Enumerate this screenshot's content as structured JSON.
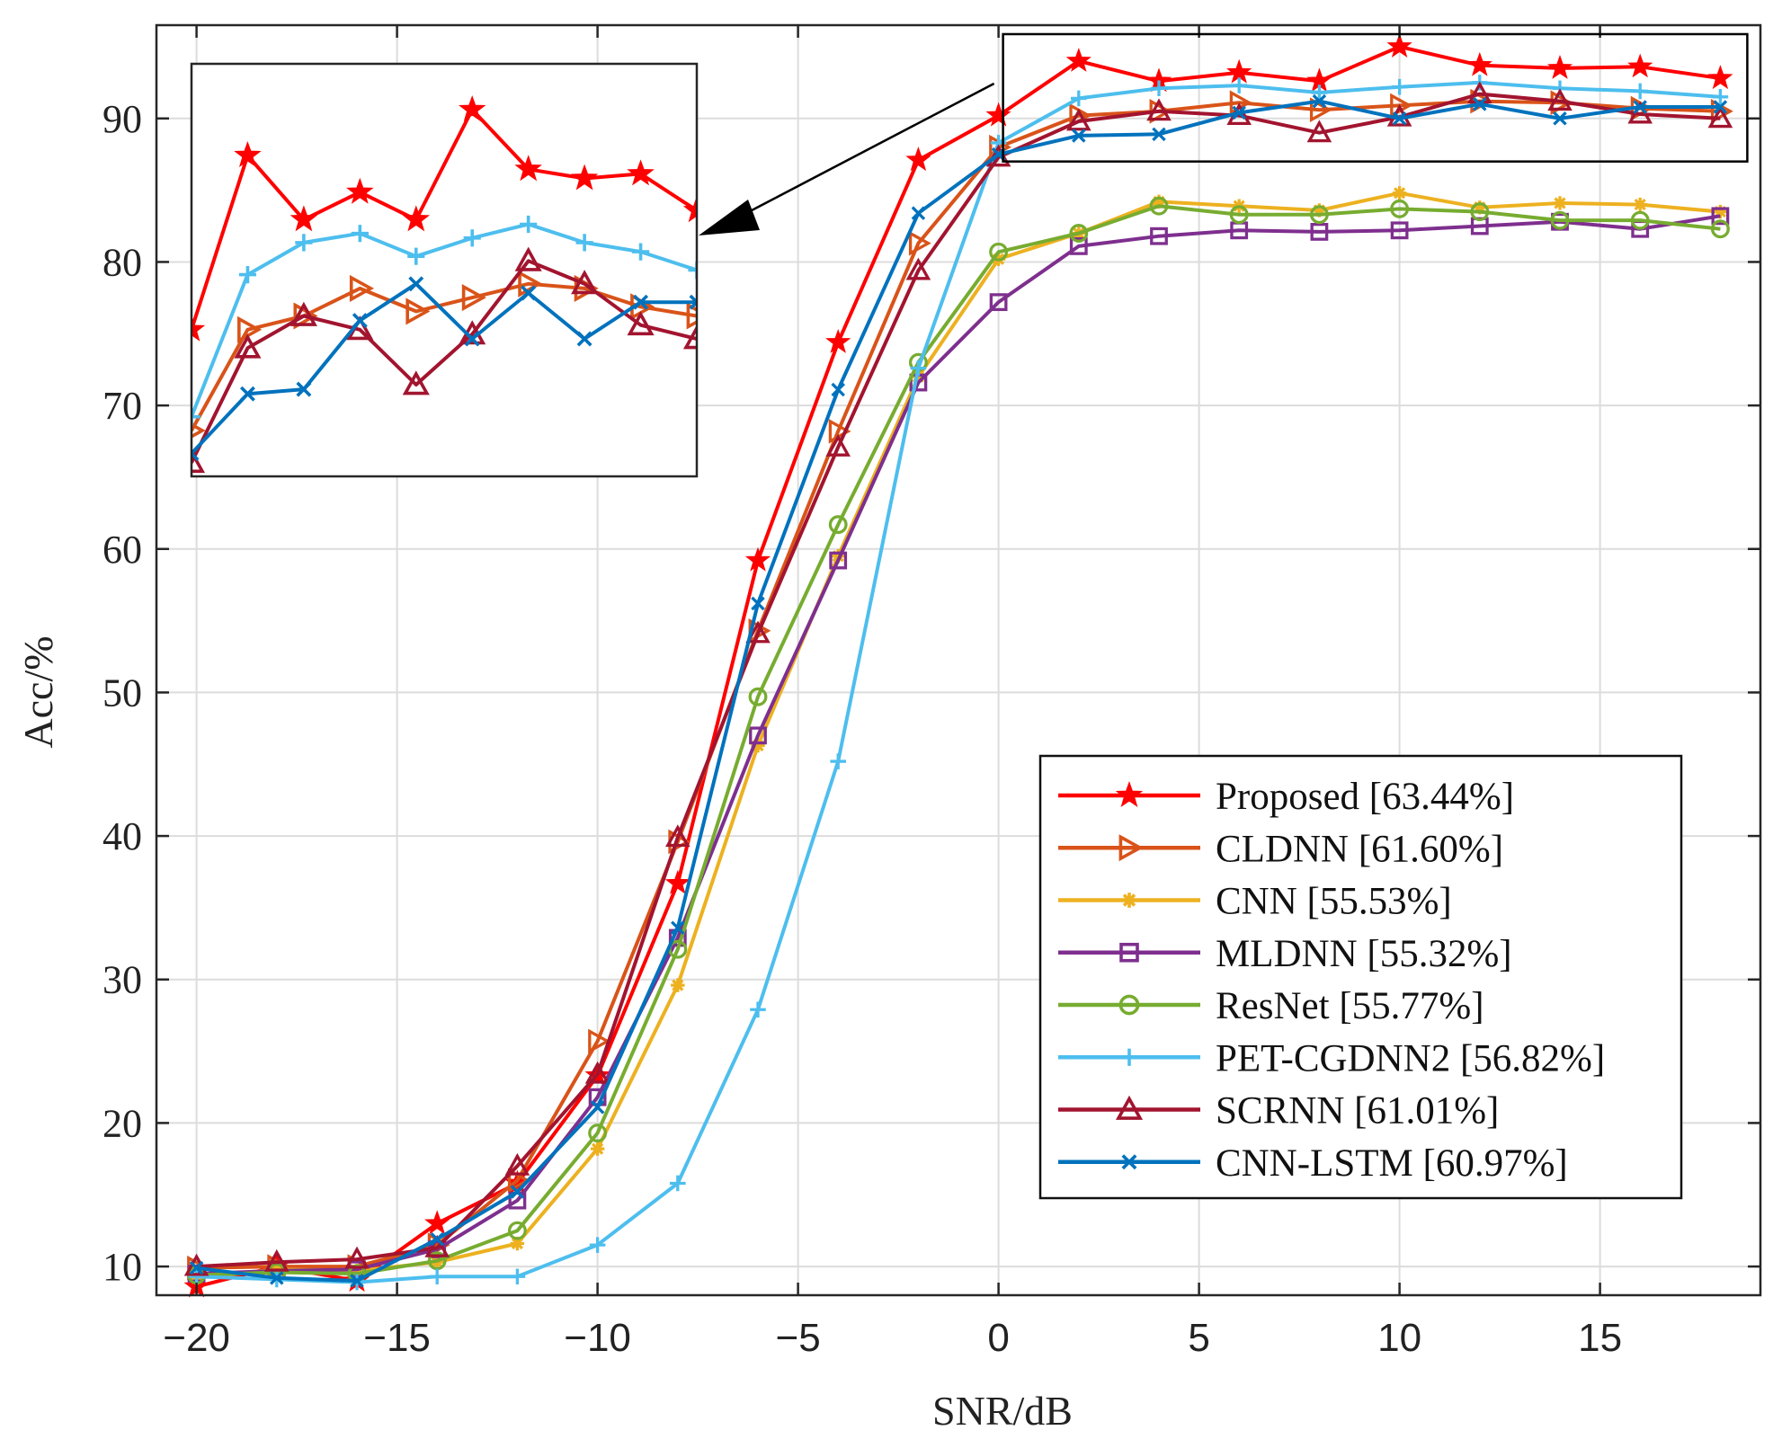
{
  "chart_data": {
    "type": "line",
    "xlabel": "SNR/dB",
    "ylabel": "Acc/%",
    "xlim": [
      -21,
      19
    ],
    "ylim": [
      8,
      96.5
    ],
    "x_ticks": [
      -20,
      -15,
      -10,
      -5,
      0,
      5,
      10,
      15
    ],
    "x_tick_labels": [
      "−20",
      "−15",
      "−10",
      "−5",
      "0",
      "5",
      "10",
      "15"
    ],
    "y_ticks": [
      10,
      20,
      30,
      40,
      50,
      60,
      70,
      80,
      90
    ],
    "y_tick_labels": [
      "10",
      "20",
      "30",
      "40",
      "50",
      "60",
      "70",
      "80",
      "90"
    ],
    "grid": true,
    "legend_position": "lower-right",
    "x": [
      -20,
      -18,
      -16,
      -14,
      -12,
      -10,
      -8,
      -6,
      -4,
      -2,
      0,
      2,
      4,
      6,
      8,
      10,
      12,
      14,
      16,
      18
    ],
    "series": [
      {
        "name": "Proposed [63.44%]",
        "color": "#ff0000",
        "marker": "star",
        "values": [
          8.6,
          10.0,
          9.0,
          13.0,
          15.8,
          23.3,
          36.7,
          59.2,
          74.4,
          87.1,
          90.2,
          94.0,
          92.6,
          93.2,
          92.6,
          95.0,
          93.7,
          93.5,
          93.6,
          92.8
        ]
      },
      {
        "name": "CLDNN [61.60%]",
        "color": "#d95319",
        "marker": "triangle-right",
        "values": [
          9.9,
          10.0,
          10.0,
          11.5,
          16.0,
          25.7,
          39.6,
          54.3,
          68.2,
          81.3,
          88.0,
          90.2,
          90.5,
          91.1,
          90.6,
          90.9,
          91.2,
          91.1,
          90.7,
          90.5
        ]
      },
      {
        "name": "CNN [55.53%]",
        "color": "#edb120",
        "marker": "asterisk",
        "values": [
          9.2,
          9.8,
          9.7,
          10.3,
          11.6,
          18.2,
          29.6,
          46.3,
          59.5,
          72.0,
          80.2,
          82.0,
          84.2,
          83.9,
          83.6,
          84.8,
          83.8,
          84.1,
          84.0,
          83.5
        ]
      },
      {
        "name": "MLDNN [55.32%]",
        "color": "#7e2f8e",
        "marker": "square",
        "values": [
          9.5,
          9.7,
          9.8,
          11.2,
          14.6,
          21.8,
          32.9,
          47.0,
          59.2,
          71.6,
          77.2,
          81.1,
          81.8,
          82.2,
          82.1,
          82.2,
          82.5,
          82.8,
          82.3,
          83.2
        ]
      },
      {
        "name": "ResNet [55.77%]",
        "color": "#77ac30",
        "marker": "circle",
        "values": [
          9.4,
          9.6,
          9.5,
          10.4,
          12.5,
          19.3,
          32.1,
          49.7,
          61.7,
          73.0,
          80.7,
          82.0,
          83.9,
          83.3,
          83.3,
          83.7,
          83.5,
          82.9,
          82.9,
          82.3
        ]
      },
      {
        "name": "PET-CGDNN2 [56.82%]",
        "color": "#4dbeee",
        "marker": "plus",
        "values": [
          9.3,
          9.1,
          8.9,
          9.3,
          9.3,
          11.5,
          15.8,
          27.9,
          45.2,
          72.6,
          88.3,
          91.4,
          92.1,
          92.3,
          91.8,
          92.2,
          92.5,
          92.1,
          91.9,
          91.5
        ]
      },
      {
        "name": "SCRNN [61.01%]",
        "color": "#a2142f",
        "marker": "triangle-up",
        "values": [
          10.0,
          10.3,
          10.5,
          11.3,
          17.0,
          23.4,
          39.9,
          54.1,
          67.1,
          79.4,
          87.3,
          89.8,
          90.5,
          90.2,
          89.0,
          90.1,
          91.7,
          91.2,
          90.3,
          90.0
        ]
      },
      {
        "name": "CNN-LSTM [60.97%]",
        "color": "#0072bd",
        "marker": "x",
        "values": [
          9.9,
          9.2,
          9.0,
          11.9,
          15.2,
          21.1,
          33.6,
          56.2,
          71.1,
          83.4,
          87.5,
          88.8,
          88.9,
          90.4,
          91.2,
          90.0,
          91.0,
          90.0,
          90.8,
          90.8
        ]
      }
    ],
    "inset": {
      "zoom_x": [
        0,
        18
      ],
      "zoom_y": [
        87,
        96
      ],
      "arrow": true
    }
  }
}
